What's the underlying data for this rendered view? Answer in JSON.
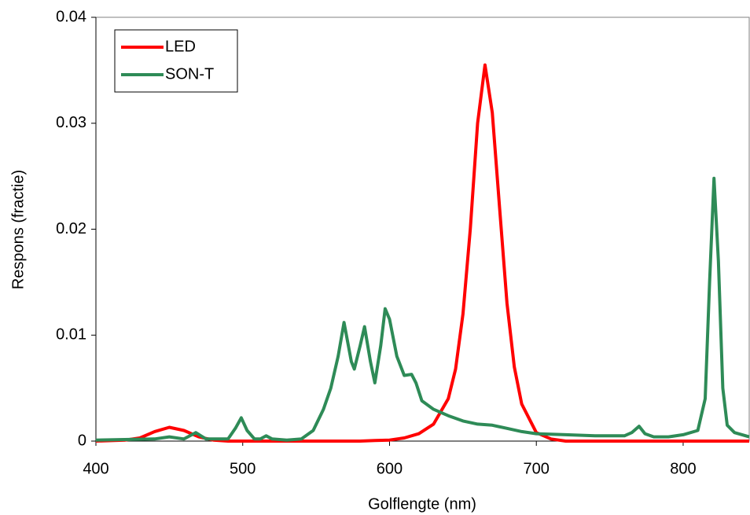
{
  "chart_data": {
    "type": "line",
    "xlabel": "Golflengte (nm)",
    "ylabel": "Respons (fractie)",
    "xlim": [
      400,
      845
    ],
    "ylim": [
      0,
      0.04
    ],
    "xticks": [
      400,
      500,
      600,
      700,
      800
    ],
    "yticks": [
      0,
      0.01,
      0.02,
      0.03,
      0.04
    ],
    "legend": "upper left",
    "series": [
      {
        "name": "LED",
        "color": "#ff0000",
        "x": [
          400,
          420,
          430,
          440,
          450,
          460,
          470,
          480,
          490,
          580,
          590,
          600,
          610,
          620,
          630,
          640,
          645,
          650,
          655,
          660,
          665,
          670,
          675,
          680,
          685,
          690,
          700,
          710,
          720,
          845
        ],
        "values": [
          0,
          0.0001,
          0.0003,
          0.0009,
          0.0013,
          0.001,
          0.0004,
          0.0001,
          0,
          0,
          5e-05,
          0.0001,
          0.0003,
          0.0007,
          0.0016,
          0.004,
          0.0068,
          0.012,
          0.02,
          0.03,
          0.0355,
          0.031,
          0.022,
          0.013,
          0.007,
          0.0035,
          0.0008,
          0.0002,
          0,
          0
        ]
      },
      {
        "name": "SON-T",
        "color": "#2e8b57",
        "x": [
          400,
          440,
          450,
          460,
          468,
          475,
          490,
          495,
          499,
          503,
          508,
          512,
          516,
          520,
          530,
          540,
          548,
          555,
          560,
          565,
          569,
          574,
          576,
          580,
          583,
          587,
          590,
          594,
          597,
          600,
          605,
          610,
          615,
          618,
          622,
          630,
          640,
          650,
          660,
          670,
          680,
          690,
          700,
          720,
          740,
          760,
          765,
          770,
          774,
          780,
          790,
          800,
          810,
          815,
          818,
          821,
          824,
          827,
          830,
          835,
          845
        ],
        "values": [
          0.0001,
          0.0002,
          0.0004,
          0.0002,
          0.0008,
          0.0002,
          0.0002,
          0.0012,
          0.0022,
          0.001,
          0.0002,
          0.0002,
          0.0005,
          0.0002,
          0.0001,
          0.0002,
          0.001,
          0.003,
          0.005,
          0.008,
          0.0112,
          0.0075,
          0.0068,
          0.009,
          0.0108,
          0.0075,
          0.0055,
          0.009,
          0.0125,
          0.0115,
          0.008,
          0.0062,
          0.0063,
          0.0055,
          0.0038,
          0.003,
          0.0024,
          0.0019,
          0.0016,
          0.0015,
          0.0012,
          0.0009,
          0.0007,
          0.0006,
          0.0005,
          0.0005,
          0.0008,
          0.0014,
          0.0007,
          0.0004,
          0.0004,
          0.0006,
          0.001,
          0.004,
          0.015,
          0.0248,
          0.017,
          0.005,
          0.0015,
          0.0008,
          0.0004
        ]
      }
    ]
  }
}
